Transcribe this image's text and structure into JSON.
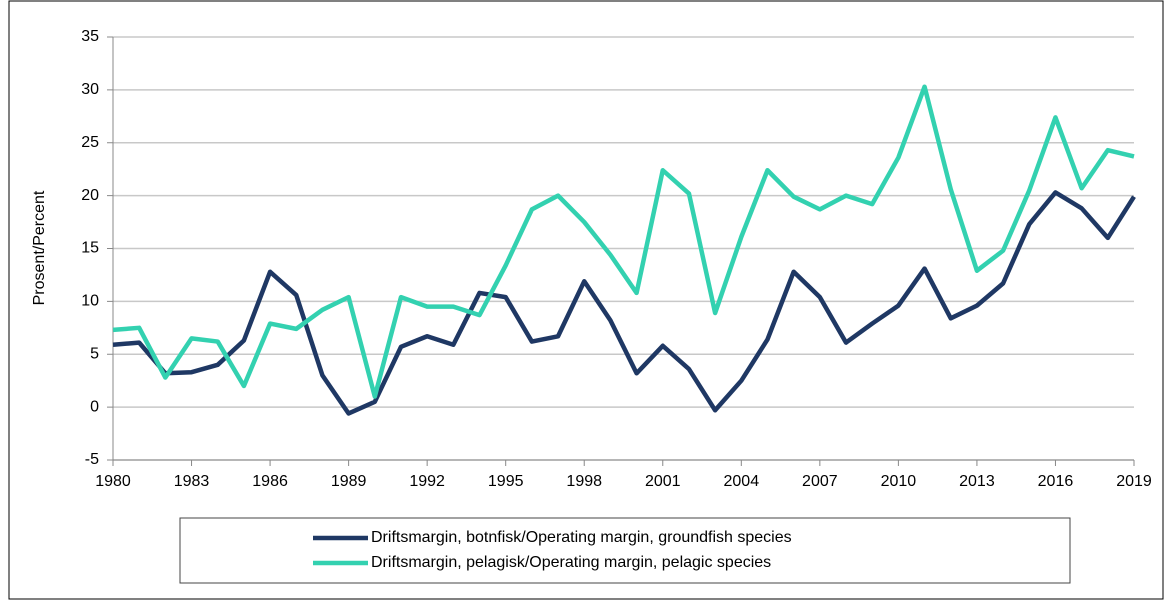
{
  "chart_data": {
    "type": "line",
    "y_label": "Prosent/Percent",
    "x": [
      1980,
      1981,
      1982,
      1983,
      1984,
      1985,
      1986,
      1987,
      1988,
      1989,
      1990,
      1991,
      1992,
      1993,
      1994,
      1995,
      1996,
      1997,
      1998,
      1999,
      2000,
      2001,
      2002,
      2003,
      2004,
      2005,
      2006,
      2007,
      2008,
      2009,
      2010,
      2011,
      2012,
      2013,
      2014,
      2015,
      2016,
      2017,
      2018,
      2019
    ],
    "series": [
      {
        "name": "Driftsmargin, botnfisk/Operating margin, groundfish species",
        "color": "#1f3864",
        "values": [
          5.9,
          6.1,
          3.2,
          3.3,
          4.0,
          6.3,
          12.8,
          10.6,
          3.0,
          -0.6,
          0.5,
          5.7,
          6.7,
          5.9,
          10.8,
          10.4,
          6.2,
          6.7,
          11.9,
          8.2,
          3.2,
          5.8,
          3.6,
          -0.3,
          2.5,
          6.4,
          12.8,
          10.4,
          6.1,
          7.9,
          9.6,
          13.1,
          8.4,
          9.6,
          11.7,
          17.3,
          20.3,
          18.8,
          16.0,
          19.9
        ]
      },
      {
        "name": "Driftsmargin, pelagisk/Operating margin, pelagic species",
        "color": "#33d1b0",
        "values": [
          7.3,
          7.5,
          2.8,
          6.5,
          6.2,
          2.0,
          7.9,
          7.4,
          9.2,
          10.4,
          1.0,
          10.4,
          9.5,
          9.5,
          8.7,
          13.4,
          18.7,
          20.0,
          17.5,
          14.4,
          10.8,
          22.4,
          20.2,
          8.9,
          16.1,
          22.4,
          19.9,
          18.7,
          20.0,
          19.2,
          23.6,
          30.3,
          20.6,
          12.9,
          14.8,
          20.5,
          27.4,
          20.7,
          24.3,
          23.7
        ]
      }
    ],
    "xlim": [
      1980,
      2019
    ],
    "xticks": [
      1980,
      1983,
      1986,
      1989,
      1992,
      1995,
      1998,
      2001,
      2004,
      2007,
      2010,
      2013,
      2016,
      2019
    ],
    "ylim": [
      -5,
      35
    ],
    "yticks": [
      -5,
      0,
      5,
      10,
      15,
      20,
      25,
      30,
      35
    ],
    "grid": true,
    "legend": "bottom"
  }
}
